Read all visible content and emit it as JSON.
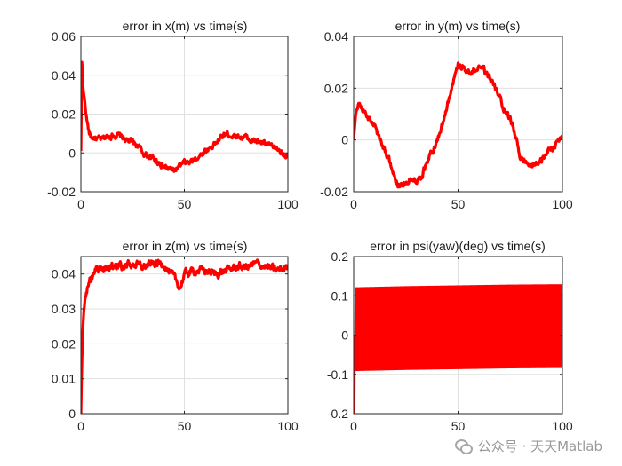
{
  "colors": {
    "line": "#ff0000",
    "axis": "#262626",
    "grid": "#e0e0e0",
    "background": "#ffffff"
  },
  "watermark": {
    "text": "公众号 · 天天Matlab",
    "icon": "wechat-icon"
  },
  "chart_data": [
    {
      "type": "line",
      "title": "error in x(m) vs time(s)",
      "xlabel": "",
      "ylabel": "",
      "xlim": [
        0,
        100
      ],
      "ylim": [
        -0.02,
        0.06
      ],
      "xticks": [
        0,
        50,
        100
      ],
      "yticks": [
        -0.02,
        0,
        0.02,
        0.04,
        0.06
      ],
      "xtick_labels": [
        "0",
        "50",
        "100"
      ],
      "ytick_labels": [
        "-0.02",
        "0",
        "0.02",
        "0.04",
        "0.06"
      ],
      "grid": true,
      "series": [
        {
          "noise": 0.0015,
          "x": [
            0,
            0.5,
            1,
            2,
            3,
            4,
            5,
            6,
            8,
            10,
            12,
            15,
            18,
            20,
            23,
            25,
            28,
            30,
            33,
            35,
            38,
            40,
            42,
            45,
            48,
            50,
            53,
            55,
            58,
            60,
            63,
            65,
            68,
            70,
            73,
            75,
            78,
            80,
            83,
            85,
            88,
            90,
            93,
            95,
            98,
            100
          ],
          "y": [
            0.001,
            0.049,
            0.034,
            0.025,
            0.016,
            0.01,
            0.008,
            0.008,
            0.007,
            0.007,
            0.008,
            0.009,
            0.009,
            0.008,
            0.006,
            0.006,
            0.003,
            0.0,
            -0.002,
            -0.003,
            -0.005,
            -0.007,
            -0.008,
            -0.009,
            -0.007,
            -0.005,
            -0.005,
            -0.003,
            -0.001,
            0.001,
            0.003,
            0.005,
            0.008,
            0.01,
            0.009,
            0.009,
            0.008,
            0.008,
            0.006,
            0.006,
            0.005,
            0.004,
            0.003,
            0.002,
            0.0,
            -0.003
          ]
        }
      ]
    },
    {
      "type": "line",
      "title": "error in y(m) vs time(s)",
      "xlabel": "",
      "ylabel": "",
      "xlim": [
        0,
        100
      ],
      "ylim": [
        -0.02,
        0.04
      ],
      "xticks": [
        0,
        50,
        100
      ],
      "yticks": [
        -0.02,
        0,
        0.02,
        0.04
      ],
      "xtick_labels": [
        "0",
        "50",
        "100"
      ],
      "ytick_labels": [
        "-0.02",
        "0",
        "0.02",
        "0.04"
      ],
      "grid": true,
      "series": [
        {
          "noise": 0.0012,
          "x": [
            0,
            1,
            2,
            3,
            5,
            7,
            10,
            12,
            15,
            18,
            20,
            22,
            25,
            28,
            30,
            33,
            35,
            38,
            40,
            43,
            45,
            48,
            50,
            52,
            55,
            58,
            60,
            62,
            65,
            68,
            70,
            72,
            75,
            78,
            80,
            83,
            85,
            88,
            90,
            92,
            95,
            98,
            100
          ],
          "y": [
            0.0,
            0.01,
            0.014,
            0.013,
            0.011,
            0.008,
            0.006,
            0.001,
            -0.004,
            -0.01,
            -0.015,
            -0.018,
            -0.016,
            -0.015,
            -0.015,
            -0.013,
            -0.008,
            -0.004,
            0.0,
            0.007,
            0.014,
            0.024,
            0.029,
            0.028,
            0.027,
            0.027,
            0.028,
            0.027,
            0.024,
            0.02,
            0.016,
            0.012,
            0.008,
            0.0,
            -0.007,
            -0.01,
            -0.01,
            -0.009,
            -0.008,
            -0.005,
            -0.003,
            -0.001,
            0.002
          ]
        }
      ]
    },
    {
      "type": "line",
      "title": "error in z(m) vs time(s)",
      "xlabel": "",
      "ylabel": "",
      "xlim": [
        0,
        100
      ],
      "ylim": [
        0,
        0.045
      ],
      "xticks": [
        0,
        50,
        100
      ],
      "yticks": [
        0,
        0.01,
        0.02,
        0.03,
        0.04
      ],
      "xtick_labels": [
        "0",
        "50",
        "100"
      ],
      "ytick_labels": [
        "0",
        "0.01",
        "0.02",
        "0.03",
        "0.04"
      ],
      "grid": true,
      "series": [
        {
          "noise": 0.0011,
          "x": [
            0,
            0.3,
            0.6,
            1,
            1.5,
            2,
            3,
            4,
            5,
            6,
            8,
            10,
            15,
            20,
            25,
            30,
            35,
            40,
            42,
            45,
            47,
            48,
            50,
            55,
            60,
            65,
            70,
            75,
            80,
            85,
            90,
            95,
            100
          ],
          "y": [
            0.0,
            0.01,
            0.018,
            0.025,
            0.03,
            0.033,
            0.036,
            0.038,
            0.039,
            0.04,
            0.041,
            0.0415,
            0.042,
            0.042,
            0.043,
            0.042,
            0.043,
            0.043,
            0.041,
            0.039,
            0.037,
            0.036,
            0.04,
            0.041,
            0.041,
            0.04,
            0.041,
            0.042,
            0.042,
            0.043,
            0.042,
            0.041,
            0.042
          ]
        }
      ]
    },
    {
      "type": "line",
      "title": "error in psi(yaw)(deg) vs time(s)",
      "xlabel": "",
      "ylabel": "",
      "xlim": [
        0,
        100
      ],
      "ylim": [
        -0.2,
        0.2
      ],
      "xticks": [
        0,
        50,
        100
      ],
      "yticks": [
        -0.2,
        -0.1,
        0,
        0.1,
        0.2
      ],
      "xtick_labels": [
        "0",
        "50",
        "100"
      ],
      "ytick_labels": [
        "-0.2",
        "-0.1",
        "0",
        "0.1",
        "0.2"
      ],
      "grid": true,
      "series": [
        {
          "style": "dense-oscillation",
          "initial_spike": {
            "x": 0.5,
            "y": -0.2
          },
          "x": [
            0,
            25,
            50,
            75,
            100
          ],
          "upper": [
            0.12,
            0.123,
            0.125,
            0.127,
            0.128
          ],
          "lower": [
            -0.09,
            -0.087,
            -0.085,
            -0.083,
            -0.082
          ]
        }
      ]
    }
  ]
}
